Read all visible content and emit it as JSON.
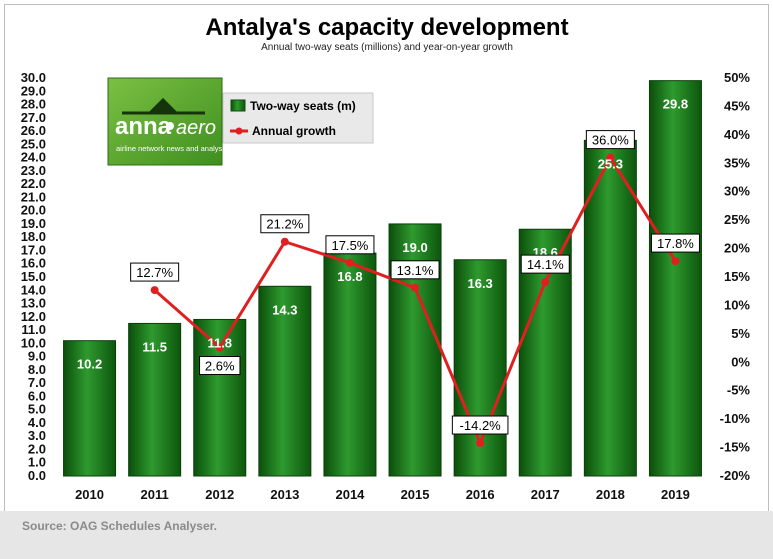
{
  "chart_data": {
    "type": "bar",
    "title": "Antalya's capacity development",
    "subtitle": "Annual two-way seats (millions) and year-on-year growth",
    "categories": [
      "2010",
      "2011",
      "2012",
      "2013",
      "2014",
      "2015",
      "2016",
      "2017",
      "2018",
      "2019"
    ],
    "series": [
      {
        "name": "Two-way seats (m)",
        "type": "bar",
        "axis": "left",
        "values": [
          10.2,
          11.5,
          11.8,
          14.3,
          16.8,
          19.0,
          16.3,
          18.6,
          25.3,
          29.8
        ],
        "labels": [
          "10.2",
          "11.5",
          "11.8",
          "14.3",
          "16.8",
          "19.0",
          "16.3",
          "18.6",
          "25.3",
          "29.8"
        ],
        "color": "#1e7a1e"
      },
      {
        "name": "Annual growth",
        "type": "line",
        "axis": "right",
        "values": [
          null,
          12.7,
          2.6,
          21.2,
          17.5,
          13.1,
          -14.2,
          14.1,
          36.0,
          17.8
        ],
        "labels": [
          "",
          "12.7%",
          "2.6%",
          "21.2%",
          "17.5%",
          "13.1%",
          "-14.2%",
          "14.1%",
          "36.0%",
          "17.8%"
        ],
        "color": "#e02020"
      }
    ],
    "left_axis": {
      "ylim": [
        0,
        30
      ],
      "ticks": [
        "0.0",
        "1.0",
        "2.0",
        "3.0",
        "4.0",
        "5.0",
        "6.0",
        "7.0",
        "8.0",
        "9.0",
        "10.0",
        "11.0",
        "12.0",
        "13.0",
        "14.0",
        "15.0",
        "16.0",
        "17.0",
        "18.0",
        "19.0",
        "20.0",
        "21.0",
        "22.0",
        "23.0",
        "24.0",
        "25.0",
        "26.0",
        "27.0",
        "28.0",
        "29.0",
        "30.0"
      ]
    },
    "right_axis": {
      "ylim": [
        -20,
        50
      ],
      "ticks": [
        "-20%",
        "-15%",
        "-10%",
        "-5%",
        "0%",
        "5%",
        "10%",
        "15%",
        "20%",
        "25%",
        "30%",
        "35%",
        "40%",
        "45%",
        "50%"
      ]
    },
    "legend": {
      "placement": "top-left",
      "items": [
        "Two-way seats (m)",
        "Annual growth"
      ]
    },
    "grid": false
  },
  "logo": {
    "brand": "anna",
    "brand2": "aero",
    "tagline": "airline network news and analysis"
  },
  "footer": {
    "source": "Source: OAG Schedules Analyser."
  }
}
